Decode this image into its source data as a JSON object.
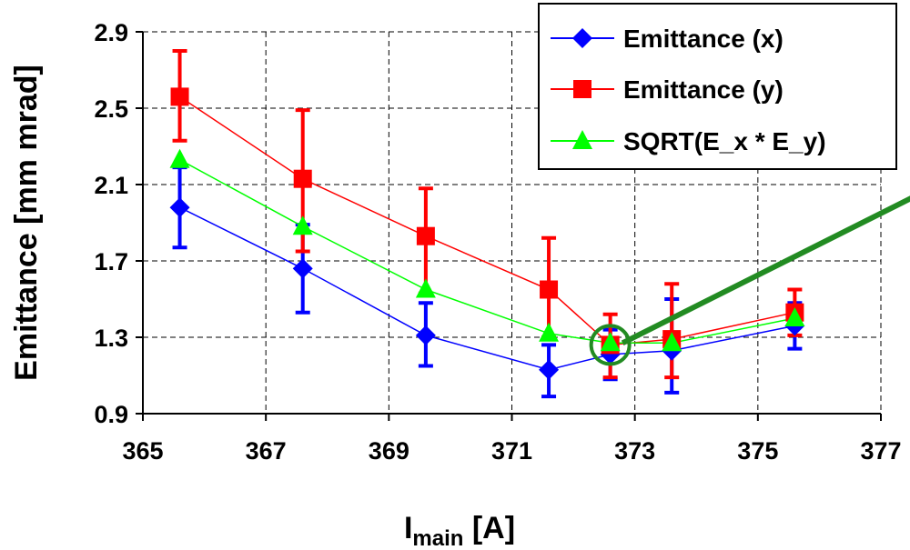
{
  "chart_data": {
    "type": "line",
    "xlabel": "I",
    "xlabel_sub": "main",
    "xlabel_unit": " [A]",
    "ylabel": "Emittance [mm mrad]",
    "xlim": [
      365,
      377
    ],
    "ylim": [
      0.9,
      2.9
    ],
    "xticks": [
      "365",
      "367",
      "369",
      "371",
      "373",
      "375",
      "377"
    ],
    "yticks": [
      "0.9",
      "1.3",
      "1.7",
      "2.1",
      "2.5",
      "2.9"
    ],
    "grid": true,
    "legend_position": "top-right",
    "series": [
      {
        "name": "Emittance (x)",
        "color": "#0000FF",
        "marker": "diamond",
        "x": [
          365.6,
          367.6,
          369.6,
          371.6,
          372.6,
          373.6,
          375.6
        ],
        "y": [
          1.98,
          1.66,
          1.31,
          1.13,
          1.21,
          1.23,
          1.36
        ],
        "err_low": [
          1.77,
          1.43,
          1.15,
          0.99,
          1.08,
          1.01,
          1.24
        ],
        "err_high": [
          2.19,
          1.89,
          1.48,
          1.26,
          1.34,
          1.5,
          1.48
        ]
      },
      {
        "name": "Emittance (y)",
        "color": "#FF0000",
        "marker": "square",
        "x": [
          365.6,
          367.6,
          369.6,
          371.6,
          372.6,
          373.6,
          375.6
        ],
        "y": [
          2.56,
          2.13,
          1.83,
          1.55,
          1.26,
          1.29,
          1.43
        ],
        "err_low": [
          2.33,
          1.75,
          1.53,
          1.3,
          1.09,
          1.09,
          1.31
        ],
        "err_high": [
          2.8,
          2.49,
          2.08,
          1.82,
          1.42,
          1.58,
          1.55
        ]
      },
      {
        "name": "SQRT(E_x * E_y)",
        "color": "#00FF00",
        "marker": "triangle",
        "x": [
          365.6,
          367.6,
          369.6,
          371.6,
          372.6,
          373.6,
          375.6
        ],
        "y": [
          2.23,
          1.88,
          1.55,
          1.32,
          1.27,
          1.27,
          1.4
        ]
      }
    ],
    "annotations": [
      {
        "type": "circle",
        "x": 372.6,
        "y": 1.26,
        "color": "#228B22"
      },
      {
        "type": "arrow-line",
        "from": [
          372.8,
          1.27
        ],
        "to": [
          377.5,
          2.03
        ],
        "color": "#228B22"
      }
    ]
  }
}
